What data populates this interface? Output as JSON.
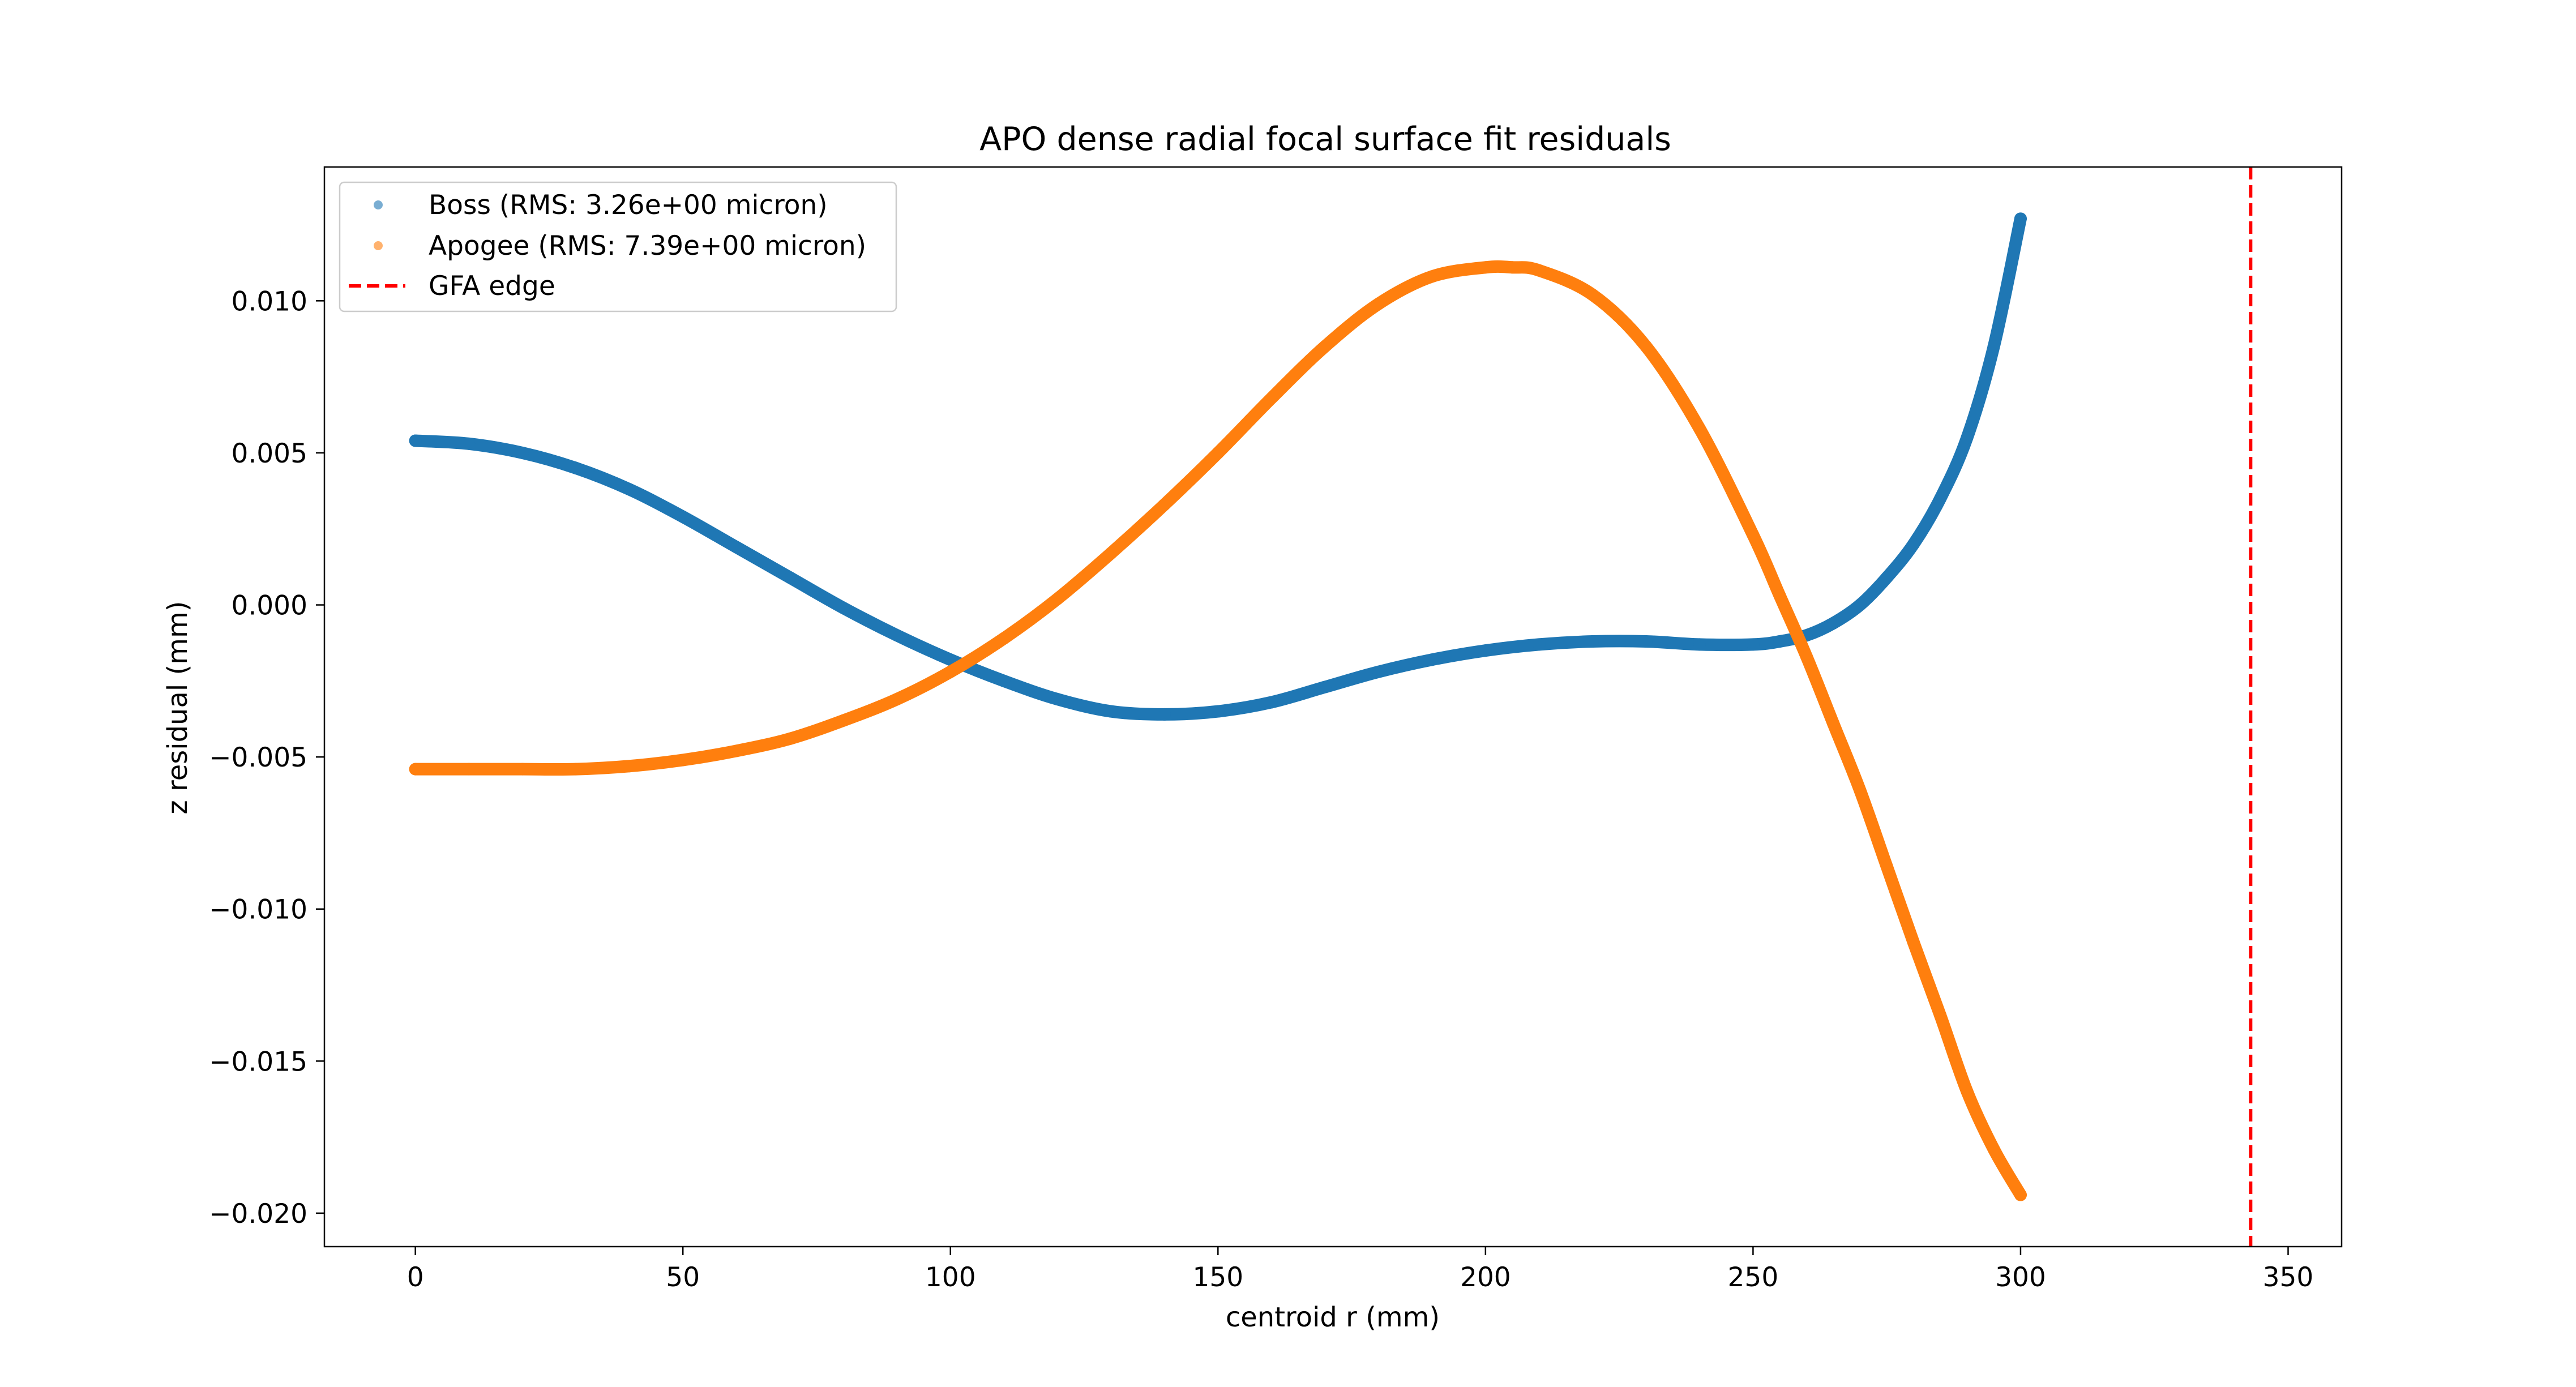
{
  "chart_data": {
    "type": "scatter",
    "title": "APO dense radial focal surface fit residuals",
    "xlabel": "centroid r (mm)",
    "ylabel": "z residual (mm)",
    "xlim": [
      -17,
      360
    ],
    "ylim": [
      -0.0211,
      0.0144
    ],
    "xticks": [
      0,
      50,
      100,
      150,
      200,
      250,
      300,
      350
    ],
    "xtick_labels": [
      "0",
      "50",
      "100",
      "150",
      "200",
      "250",
      "300",
      "350"
    ],
    "yticks": [
      0.01,
      0.005,
      0.0,
      -0.005,
      -0.01,
      -0.015,
      -0.02
    ],
    "ytick_labels": [
      "0.010",
      "0.005",
      "0.000",
      "−0.005",
      "−0.010",
      "−0.015",
      "−0.020"
    ],
    "grid": false,
    "legend_position": "upper-left",
    "series": [
      {
        "name": "Boss (RMS: 3.26e+00 micron)",
        "color": "#1f77b4",
        "marker": "circle",
        "x": [
          0,
          10,
          20,
          30,
          40,
          50,
          60,
          70,
          80,
          90,
          100,
          110,
          120,
          130,
          140,
          150,
          160,
          170,
          180,
          190,
          200,
          210,
          220,
          230,
          240,
          250,
          255,
          260,
          265,
          270,
          275,
          280,
          285,
          290,
          295,
          300
        ],
        "y": [
          0.0054,
          0.0053,
          0.005,
          0.0045,
          0.0038,
          0.0029,
          0.0019,
          0.0009,
          -0.0001,
          -0.001,
          -0.0018,
          -0.0025,
          -0.0031,
          -0.0035,
          -0.0036,
          -0.0035,
          -0.0032,
          -0.0027,
          -0.0022,
          -0.0018,
          -0.0015,
          -0.0013,
          -0.0012,
          -0.0012,
          -0.0013,
          -0.0013,
          -0.0012,
          -0.001,
          -0.0006,
          0.0,
          0.0009,
          0.002,
          0.0035,
          0.0055,
          0.0085,
          0.0127
        ]
      },
      {
        "name": "Apogee (RMS: 7.39e+00 micron)",
        "color": "#ff7f0e",
        "marker": "circle",
        "x": [
          0,
          10,
          20,
          30,
          40,
          50,
          60,
          70,
          80,
          90,
          100,
          110,
          120,
          130,
          140,
          150,
          160,
          170,
          180,
          190,
          200,
          205,
          210,
          220,
          230,
          240,
          250,
          255,
          260,
          265,
          270,
          275,
          280,
          285,
          290,
          295,
          300
        ],
        "y": [
          -0.0054,
          -0.0054,
          -0.0054,
          -0.0054,
          -0.0053,
          -0.0051,
          -0.0048,
          -0.0044,
          -0.0038,
          -0.0031,
          -0.0022,
          -0.0011,
          0.0002,
          0.0017,
          0.0033,
          0.005,
          0.0068,
          0.0085,
          0.0099,
          0.0108,
          0.0111,
          0.0111,
          0.011,
          0.0102,
          0.0085,
          0.0058,
          0.0023,
          0.0003,
          -0.0017,
          -0.0039,
          -0.0061,
          -0.0086,
          -0.0111,
          -0.0135,
          -0.016,
          -0.0179,
          -0.0194
        ]
      }
    ],
    "vline": {
      "name": "GFA edge",
      "x": 343,
      "color": "#ff0000",
      "style": "dashed"
    }
  }
}
